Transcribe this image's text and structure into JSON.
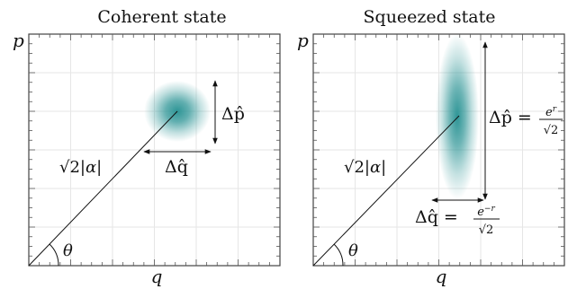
{
  "panels": [
    {
      "title": "Coherent state",
      "x_axis_label": "q",
      "y_axis_label": "p",
      "amplitude_label_sqrt": "√2",
      "amplitude_label_rest": "|α|",
      "angle_label": "θ",
      "delta_p_label": "Δp̂",
      "delta_q_label": "Δq̂",
      "state_color": "#2e9596"
    },
    {
      "title": "Squeezed state",
      "x_axis_label": "q",
      "y_axis_label": "p",
      "amplitude_label_sqrt": "√2",
      "amplitude_label_rest": "|α|",
      "angle_label": "θ",
      "delta_p_label": "Δp̂ =",
      "delta_p_num": "e",
      "delta_p_num_exp": "r",
      "delta_p_den": "√2",
      "delta_q_label": "Δq̂ =",
      "delta_q_num": "e",
      "delta_q_num_exp": "−r",
      "delta_q_den": "√2",
      "state_color": "#2e9596"
    }
  ]
}
